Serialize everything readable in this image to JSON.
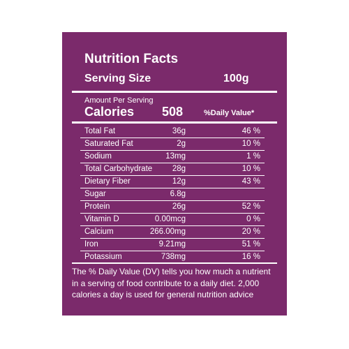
{
  "header": {
    "title": "Nutrition Facts",
    "serving_label": "Serving Size",
    "serving_value": "100g"
  },
  "calories": {
    "amount_label": "Amount Per Serving",
    "label": "Calories",
    "value": "508",
    "dv_label": "%Daily Value*"
  },
  "table": {
    "rows": [
      [
        "Total Fat",
        "36g",
        "46 %"
      ],
      [
        "Saturated Fat",
        "2g",
        "10 %"
      ],
      [
        "Sodium",
        "13mg",
        "1 %"
      ],
      [
        "Total Carbohydrate",
        "28g",
        "10 %"
      ],
      [
        "Dietary Fiber",
        "12g",
        "43 %"
      ],
      [
        "Sugar",
        "6.8g"
      ],
      [
        "Protein",
        "26g",
        "52 %"
      ],
      [
        "Vitamin D",
        "0.00mcg",
        "0 %"
      ],
      [
        "Calcium",
        "266.00mg",
        "20 %"
      ],
      [
        "Iron",
        "9.21mg",
        "51 %"
      ],
      [
        "Potassium",
        "738mg",
        "16 %"
      ]
    ]
  },
  "footnote": [
    "The % Daily Value (DV) tells you how much a nutrient",
    "in a serving of food contribute to a daily diet. 2,000",
    "calories a day is used for general nutrition advice"
  ]
}
